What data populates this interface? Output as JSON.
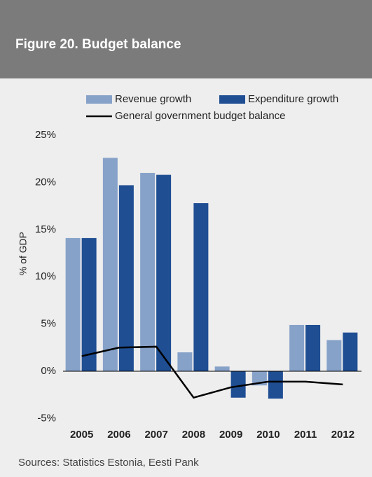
{
  "chart_data": {
    "type": "bar",
    "title": "Figure 20. Budget balance",
    "y_label": "% of GDP",
    "source": "Sources: Statistics Estonia, Eesti Pank",
    "categories": [
      "2005",
      "2006",
      "2007",
      "2008",
      "2009",
      "2010",
      "2011",
      "2012"
    ],
    "series": [
      {
        "name": "Revenue growth",
        "type": "bar",
        "color": "#87a2c9",
        "values": [
          14.1,
          22.6,
          21.0,
          2.0,
          0.5,
          -1.5,
          4.9,
          3.3
        ]
      },
      {
        "name": "Expenditure growth",
        "type": "bar",
        "color": "#1f4e93",
        "values": [
          14.1,
          19.7,
          20.8,
          17.8,
          -2.8,
          -2.9,
          4.9,
          4.1
        ]
      },
      {
        "name": "General government budget balance",
        "type": "line",
        "color": "#000000",
        "values": [
          1.6,
          2.5,
          2.6,
          -2.8,
          -1.7,
          -1.1,
          -1.1,
          -1.4
        ]
      }
    ],
    "ylim": [
      -6.0,
      25.0
    ],
    "yticks": [
      {
        "value": 25,
        "label": "25%"
      },
      {
        "value": 20,
        "label": "20%"
      },
      {
        "value": 15,
        "label": "15%"
      },
      {
        "value": 10,
        "label": "10%"
      },
      {
        "value": 5,
        "label": "5%"
      },
      {
        "value": 0,
        "label": "0%"
      },
      {
        "value": -5,
        "label": "-5%"
      }
    ],
    "grid": false
  }
}
